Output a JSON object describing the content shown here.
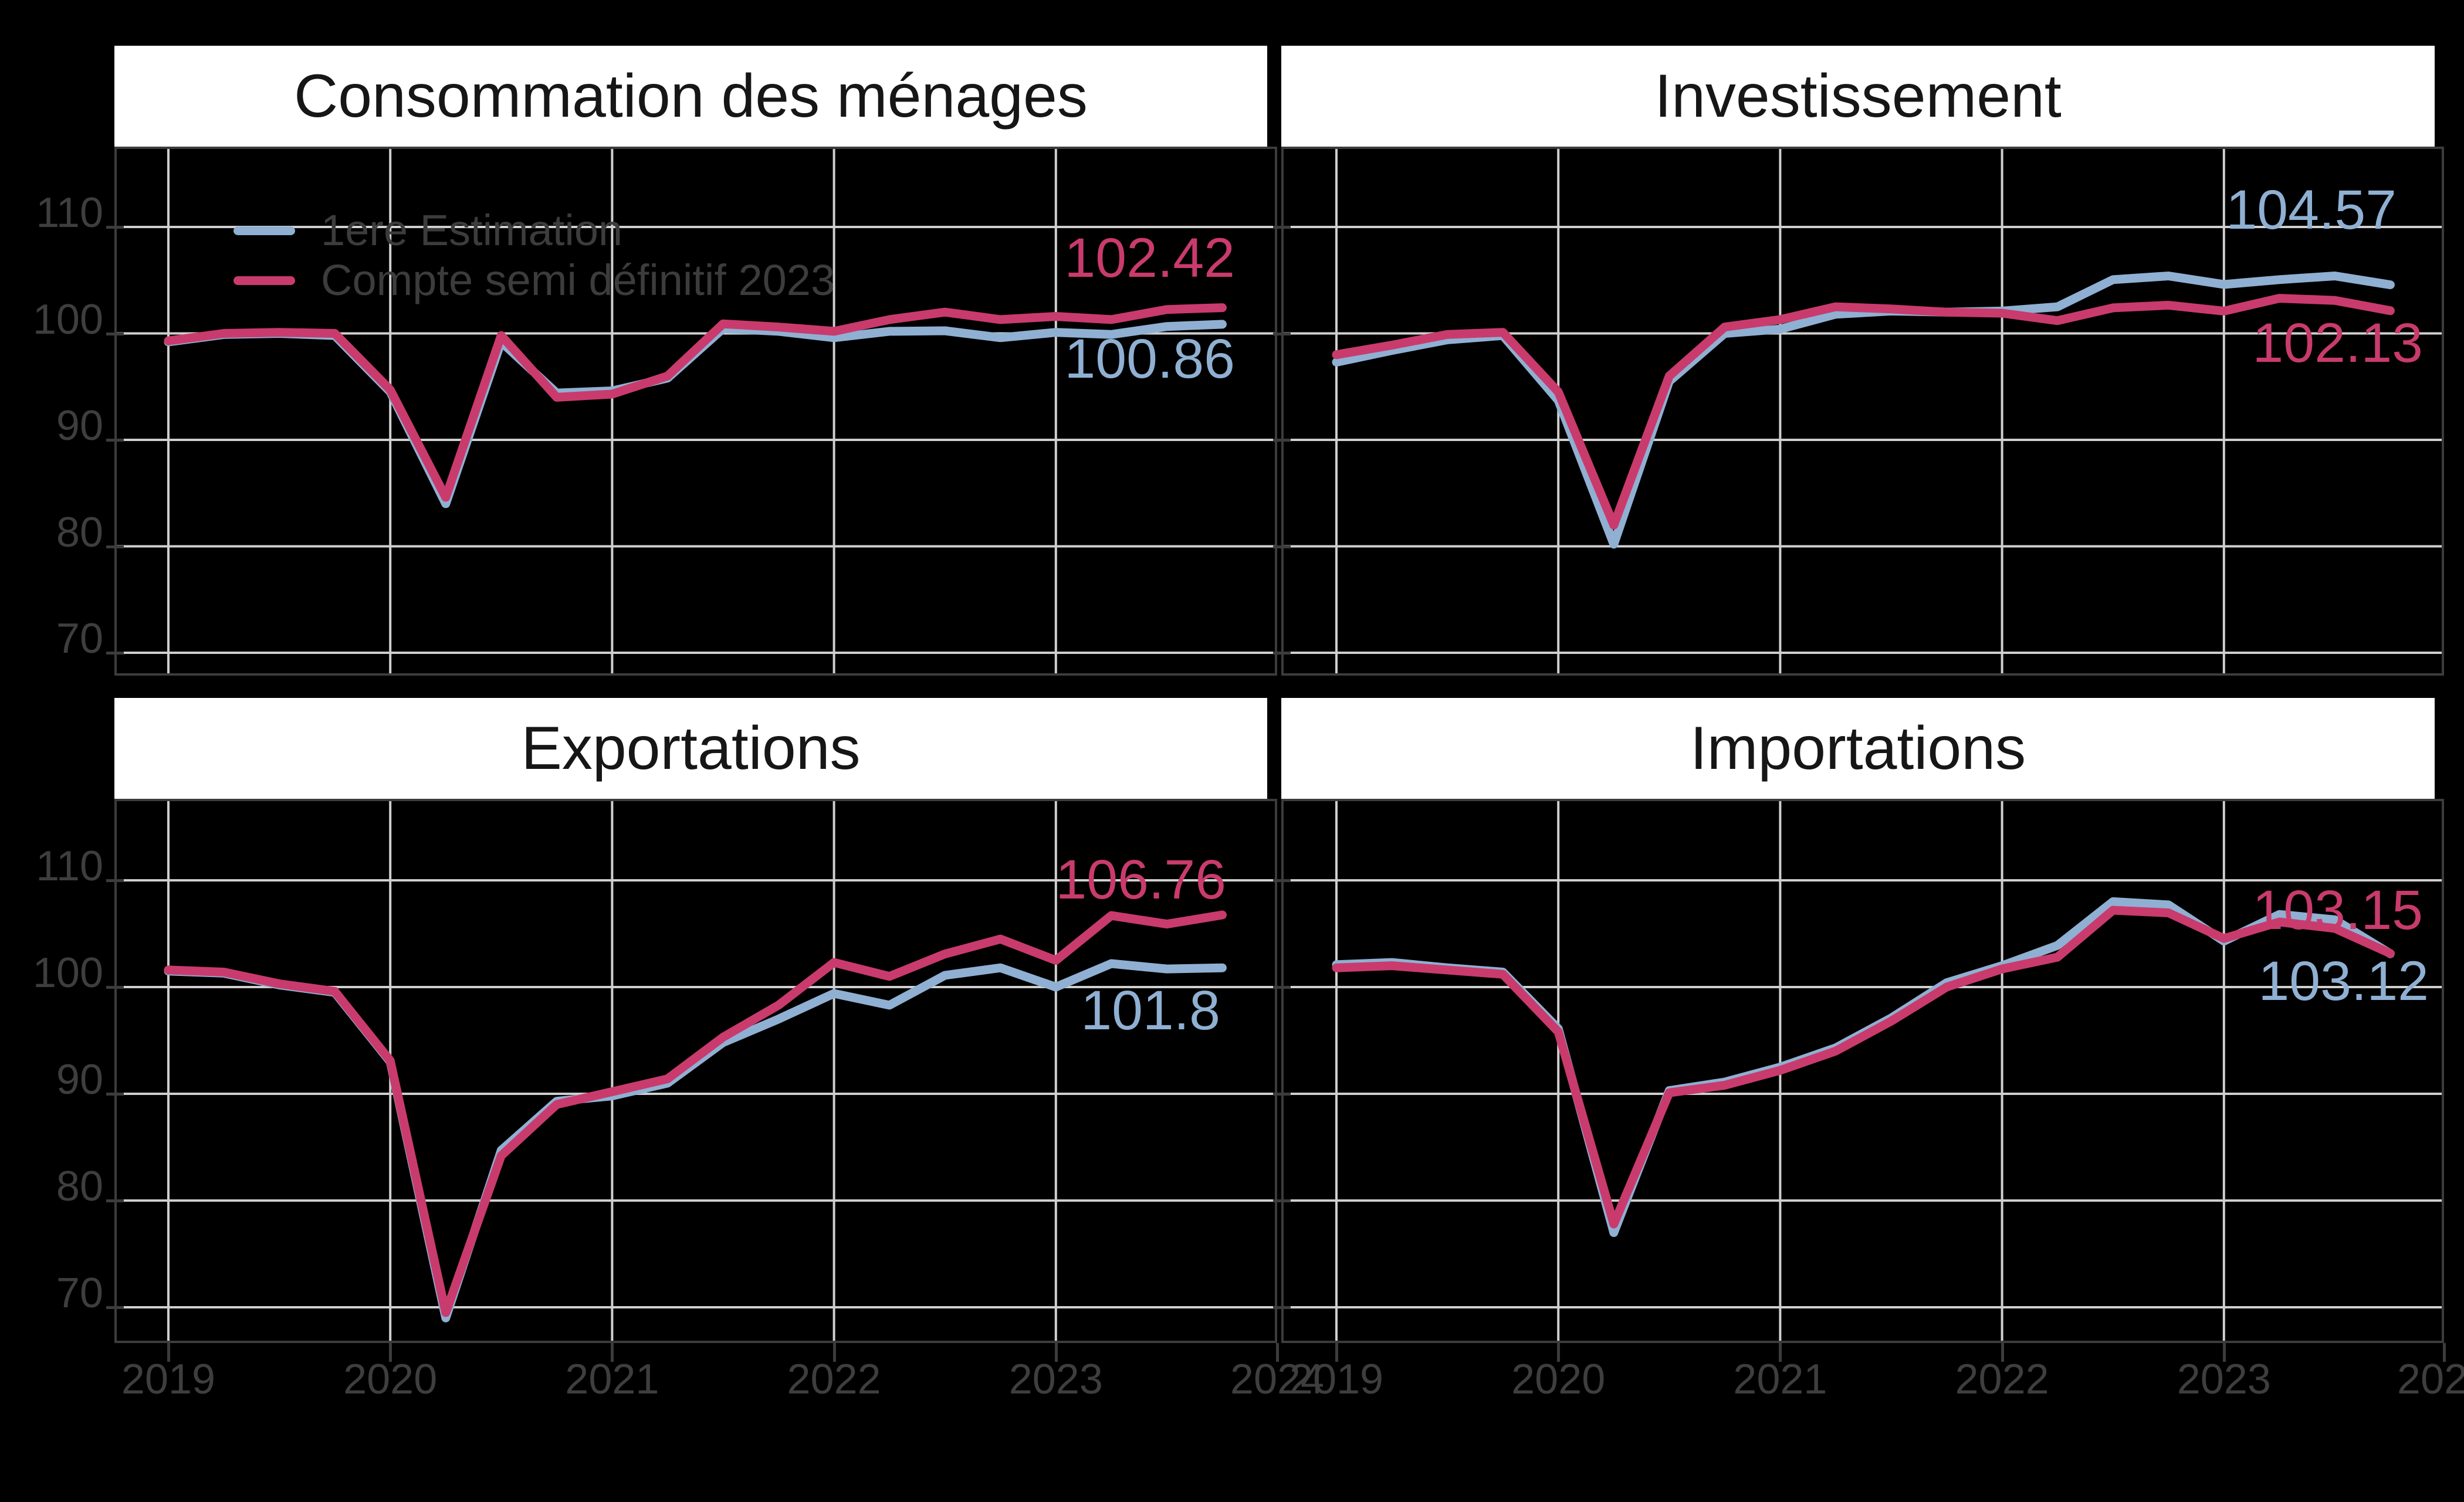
{
  "figure": {
    "background": "#000000",
    "title_strip_background": "#ffffff",
    "title_text_color": "#161616",
    "axis_text_color": "#3e3e3e",
    "legend_text_color": "#3c3c3c",
    "gridline_color": "#cfcfcf",
    "spine_color": "#3c3c3c",
    "series_colors": {
      "estimation_blue": "#8fb0d2",
      "semi_definitif_pink": "#c93b6d"
    }
  },
  "legend": {
    "items": [
      {
        "label": "1ere Estimation",
        "color_key": "estimation_blue"
      },
      {
        "label": "Compte semi définitif 2023",
        "color_key": "semi_definitif_pink"
      }
    ]
  },
  "axes": {
    "y_tick_labels": [
      "110",
      "100",
      "90",
      "80",
      "70"
    ],
    "x_tick_labels": [
      "2019",
      "2020",
      "2021",
      "2022",
      "2023",
      "2024"
    ],
    "y_range_per_row": [
      67,
      117
    ],
    "grid": "on"
  },
  "chart_data": [
    {
      "type": "line",
      "title": "Consommation des ménages",
      "x": [
        "2019Q1",
        "2019Q2",
        "2019Q3",
        "2019Q4",
        "2020Q1",
        "2020Q2",
        "2020Q3",
        "2020Q4",
        "2021Q1",
        "2021Q2",
        "2021Q3",
        "2021Q4",
        "2022Q1",
        "2022Q2",
        "2022Q3",
        "2022Q4",
        "2023Q1",
        "2023Q2",
        "2023Q3",
        "2023Q4"
      ],
      "series": [
        {
          "name": "1ere Estimation",
          "color_key": "estimation_blue",
          "values": [
            99.2,
            99.9,
            100.0,
            99.8,
            94.5,
            84.0,
            99.2,
            94.4,
            94.6,
            95.8,
            100.45,
            100.2,
            99.6,
            100.2,
            100.25,
            99.6,
            100.1,
            99.9,
            100.65,
            100.86
          ],
          "end_label": {
            "text": "100.86",
            "right": 2105,
            "y": 612
          }
        },
        {
          "name": "Compte semi définitif 2023",
          "color_key": "semi_definitif_pink",
          "values": [
            99.3,
            100.0,
            100.1,
            100.0,
            94.7,
            84.6,
            99.8,
            94.0,
            94.3,
            96.0,
            100.9,
            100.6,
            100.2,
            101.3,
            102.0,
            101.3,
            101.6,
            101.3,
            102.25,
            102.42
          ],
          "end_label": {
            "text": "102.42",
            "right": 2105,
            "y": 440
          }
        }
      ]
    },
    {
      "type": "line",
      "title": "Investissement",
      "x": [
        "2019Q1",
        "2019Q2",
        "2019Q3",
        "2019Q4",
        "2020Q1",
        "2020Q2",
        "2020Q3",
        "2020Q4",
        "2021Q1",
        "2021Q2",
        "2021Q3",
        "2021Q4",
        "2022Q1",
        "2022Q2",
        "2022Q3",
        "2022Q4",
        "2023Q1",
        "2023Q2",
        "2023Q3",
        "2023Q4"
      ],
      "series": [
        {
          "name": "1ere Estimation",
          "color_key": "estimation_blue",
          "values": [
            97.3,
            98.4,
            99.4,
            99.8,
            93.7,
            80.2,
            95.5,
            100.0,
            100.4,
            101.8,
            102.1,
            102.0,
            102.1,
            102.5,
            105.05,
            105.4,
            104.6,
            105.05,
            105.4,
            104.57
          ],
          "end_label": {
            "text": "104.57",
            "right": 4085,
            "y": 358
          }
        },
        {
          "name": "Compte semi définitif 2023",
          "color_key": "semi_definitif_pink",
          "values": [
            98.0,
            98.9,
            99.9,
            100.1,
            94.5,
            82.0,
            96.0,
            100.6,
            101.3,
            102.5,
            102.3,
            102.0,
            101.9,
            101.2,
            102.4,
            102.65,
            102.1,
            103.3,
            103.1,
            102.13
          ],
          "end_label": {
            "text": "102.13",
            "right": 4130,
            "y": 585
          }
        }
      ]
    },
    {
      "type": "line",
      "title": "Exportations",
      "x": [
        "2019Q1",
        "2019Q2",
        "2019Q3",
        "2019Q4",
        "2020Q1",
        "2020Q2",
        "2020Q3",
        "2020Q4",
        "2021Q1",
        "2021Q2",
        "2021Q3",
        "2021Q4",
        "2022Q1",
        "2022Q2",
        "2022Q3",
        "2022Q4",
        "2023Q1",
        "2023Q2",
        "2023Q3",
        "2023Q4"
      ],
      "series": [
        {
          "name": "1ere Estimation",
          "color_key": "estimation_blue",
          "values": [
            101.5,
            101.3,
            100.2,
            99.5,
            93.0,
            69.0,
            84.7,
            89.3,
            89.8,
            91.0,
            94.8,
            97.0,
            99.4,
            98.3,
            101.1,
            101.8,
            100.0,
            102.2,
            101.7,
            101.8
          ],
          "end_label": {
            "text": "101.8",
            "right": 2080,
            "y": 1723
          }
        },
        {
          "name": "Compte semi définitif 2023",
          "color_key": "semi_definitif_pink",
          "values": [
            101.6,
            101.4,
            100.3,
            99.6,
            93.1,
            69.5,
            84.2,
            89.0,
            90.2,
            91.4,
            95.3,
            98.3,
            102.3,
            101.0,
            103.1,
            104.5,
            102.5,
            106.7,
            105.9,
            106.76
          ],
          "end_label": {
            "text": "106.76",
            "right": 2090,
            "y": 1500
          }
        }
      ]
    },
    {
      "type": "line",
      "title": "Importations",
      "x": [
        "2019Q1",
        "2019Q2",
        "2019Q3",
        "2019Q4",
        "2020Q1",
        "2020Q2",
        "2020Q3",
        "2020Q4",
        "2021Q1",
        "2021Q2",
        "2021Q3",
        "2021Q4",
        "2022Q1",
        "2022Q2",
        "2022Q3",
        "2022Q4",
        "2023Q1",
        "2023Q2",
        "2023Q3",
        "2023Q4"
      ],
      "series": [
        {
          "name": "1ere Estimation",
          "color_key": "estimation_blue",
          "values": [
            102.1,
            102.3,
            101.8,
            101.4,
            96.1,
            77.0,
            90.3,
            91.1,
            92.5,
            94.3,
            97.1,
            100.4,
            102.0,
            103.9,
            108.0,
            107.7,
            104.3,
            106.8,
            106.3,
            103.12
          ],
          "end_label": {
            "text": "103.12",
            "right": 4140,
            "y": 1673
          }
        },
        {
          "name": "Compte semi définitif 2023",
          "color_key": "semi_definitif_pink",
          "values": [
            101.8,
            102.0,
            101.6,
            101.2,
            95.8,
            77.8,
            90.1,
            90.8,
            92.2,
            94.0,
            96.8,
            100.0,
            101.7,
            102.8,
            107.2,
            106.95,
            104.55,
            106.1,
            105.5,
            103.15
          ],
          "end_label": {
            "text": "103.15",
            "right": 4130,
            "y": 1552
          }
        }
      ]
    }
  ]
}
